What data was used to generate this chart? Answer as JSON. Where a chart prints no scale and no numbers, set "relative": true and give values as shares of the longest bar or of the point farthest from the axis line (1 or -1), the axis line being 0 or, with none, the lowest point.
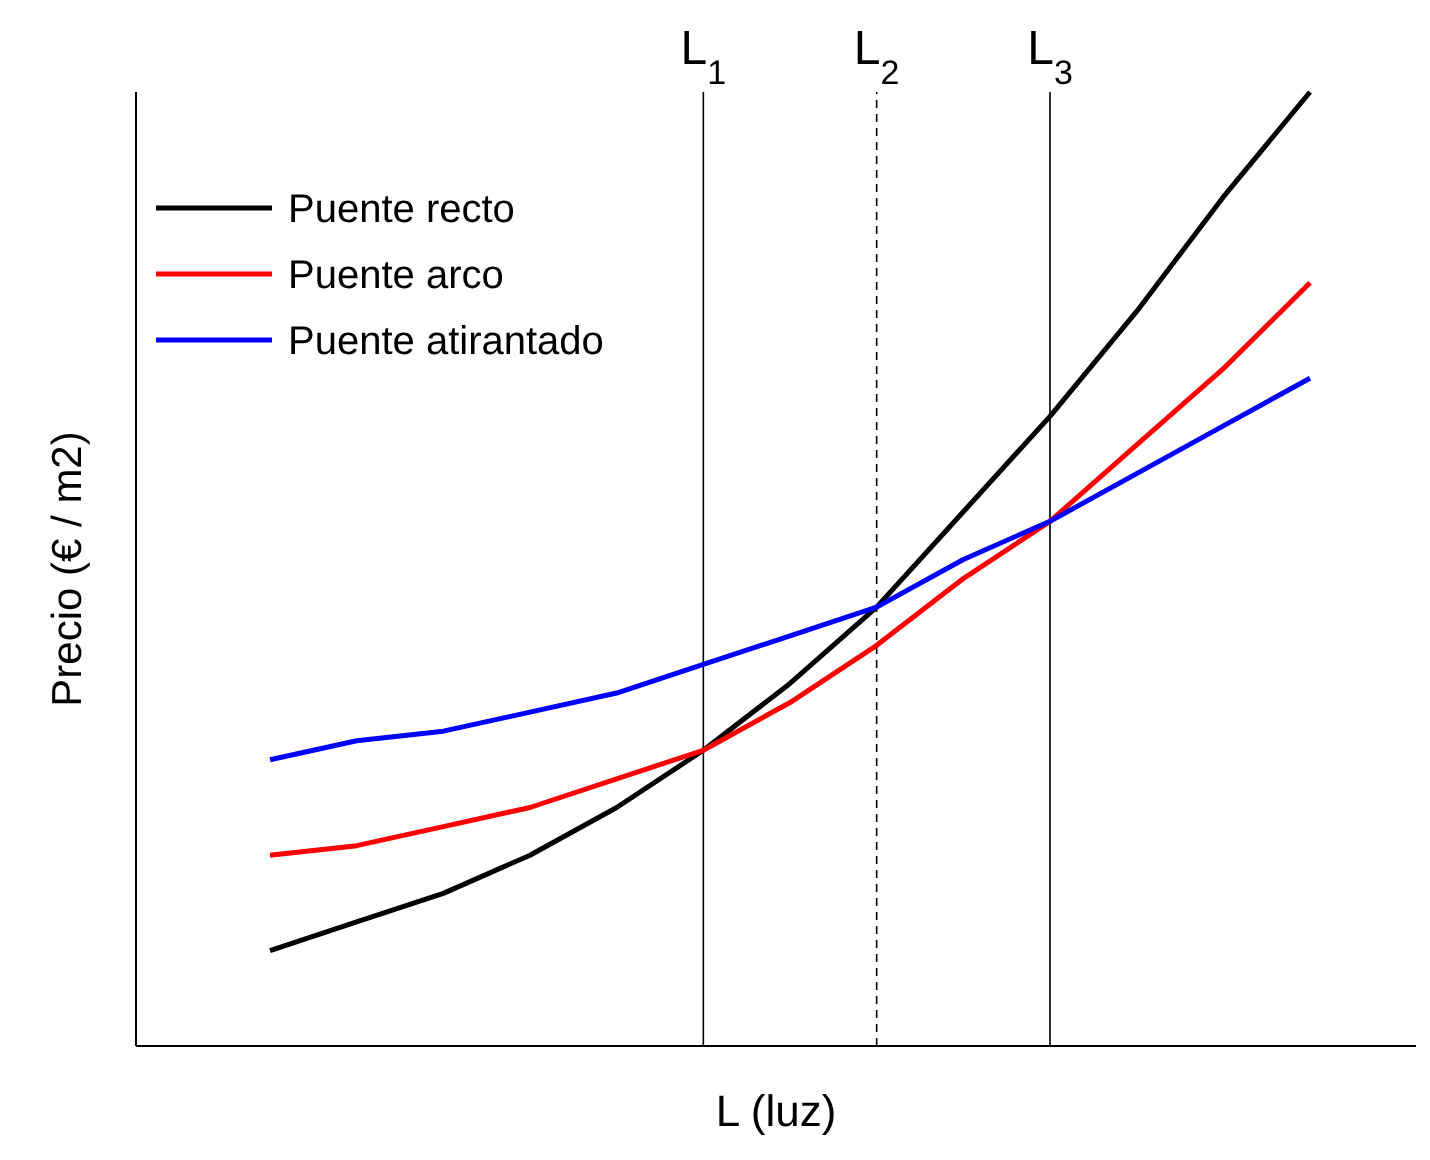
{
  "chart_data": {
    "type": "line",
    "relative": true,
    "xlabel": "L (luz)",
    "ylabel": "Precio (€ / m2)",
    "categories": [
      null,
      null,
      null,
      null,
      null,
      null,
      null,
      null,
      null,
      null,
      null,
      null,
      null
    ],
    "tick_labels": false,
    "legend": "top left",
    "series": [
      {
        "name": "Puente recto",
        "color": "#000000",
        "values": [
          0.1,
          0.13,
          0.16,
          0.2,
          0.25,
          0.31,
          0.38,
          0.46,
          0.56,
          0.66,
          0.77,
          0.89,
          1.0
        ]
      },
      {
        "name": "Puente arco",
        "color": "#ff0000",
        "values": [
          0.2,
          0.21,
          0.23,
          0.25,
          0.28,
          0.31,
          0.36,
          0.42,
          0.49,
          0.55,
          0.63,
          0.71,
          0.8
        ]
      },
      {
        "name": "Puente atirantado",
        "color": "#0000ff",
        "values": [
          0.3,
          0.32,
          0.33,
          0.35,
          0.37,
          0.4,
          0.43,
          0.46,
          0.51,
          0.55,
          0.6,
          0.65,
          0.7
        ]
      }
    ],
    "annotations": [
      "L$_{1}$",
      "L$_{2}$",
      "L$_{3}$"
    ]
  }
}
